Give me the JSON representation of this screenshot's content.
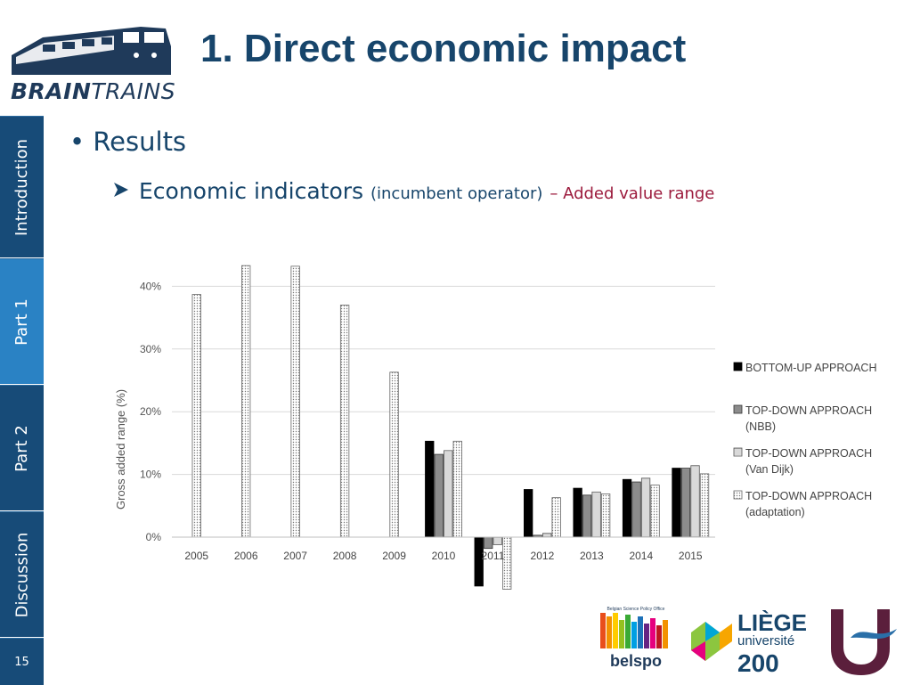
{
  "header": {
    "logo_text_bold": "BRAIN",
    "logo_text_thin": "TRAINS",
    "title": "1. Direct economic impact"
  },
  "sidebar": {
    "tabs": [
      {
        "label": "Introduction"
      },
      {
        "label": "Part 1"
      },
      {
        "label": "Part 2"
      },
      {
        "label": "Discussion"
      }
    ],
    "page_number": "15"
  },
  "content": {
    "bullet1_mark": "•",
    "bullet1": "Results",
    "bullet2_main": "Economic indicators",
    "bullet2_paren": "(incumbent operator)",
    "bullet2_range": "– Added value range"
  },
  "logos": {
    "belspo_top": "Belgian Science Policy Office",
    "belspo": "belspo",
    "liege_1": "LIÈGE",
    "liege_2": "université",
    "liege_3": "200"
  },
  "colors": {
    "title": "#17456b",
    "sidebar": "#174b78",
    "sidebar_active": "#2a82c4",
    "accent_red": "#9c1b3d"
  },
  "chart_data": {
    "type": "bar",
    "ylabel": "Gross added range (%)",
    "xlabel": "",
    "ylim": [
      -10,
      40
    ],
    "yticks": [
      "0%",
      "10%",
      "20%",
      "30%",
      "40%"
    ],
    "yticks_values": [
      0,
      10,
      20,
      30,
      40
    ],
    "grid": true,
    "legend_position": "right",
    "categories": [
      "2005",
      "2006",
      "2007",
      "2008",
      "2009",
      "2010",
      "2011",
      "2012",
      "2013",
      "2014",
      "2015"
    ],
    "series": [
      {
        "name": "BOTTOM-UP APPROACH",
        "style": "black",
        "values": [
          null,
          null,
          null,
          null,
          null,
          15.3,
          -7.8,
          7.6,
          7.8,
          9.2,
          11.0
        ]
      },
      {
        "name": "TOP-DOWN APPROACH (NBB)",
        "style": "gray",
        "values": [
          null,
          null,
          null,
          null,
          null,
          13.2,
          -1.8,
          0.3,
          6.7,
          8.8,
          11.0
        ]
      },
      {
        "name": "TOP-DOWN APPROACH (Van Dijk)",
        "style": "hatch",
        "values": [
          null,
          null,
          null,
          null,
          null,
          13.8,
          -1.2,
          0.6,
          7.2,
          9.4,
          11.4
        ]
      },
      {
        "name": "TOP-DOWN APPROACH (adaptation)",
        "style": "dots",
        "values": [
          38.7,
          43.3,
          43.2,
          37.0,
          26.3,
          15.3,
          -8.3,
          6.3,
          6.9,
          8.3,
          10.1
        ]
      }
    ],
    "legend_lines": [
      [
        "BOTTOM-UP APPROACH"
      ],
      [
        "TOP-DOWN APPROACH",
        "(NBB)"
      ],
      [
        "TOP-DOWN APPROACH",
        "(Van Dijk)"
      ],
      [
        "TOP-DOWN APPROACH",
        "(adaptation)"
      ]
    ]
  }
}
